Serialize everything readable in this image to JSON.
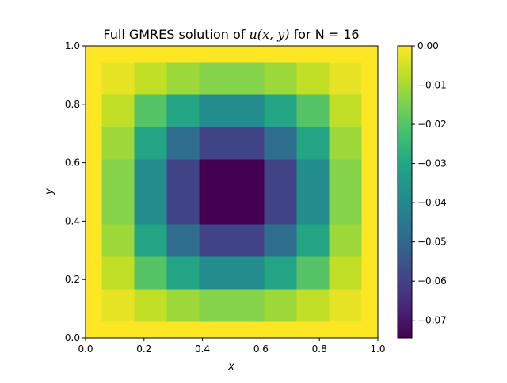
{
  "chart_data": {
    "type": "heatmap",
    "title_prefix": "Full GMRES solution of ",
    "title_math": "u(x, y)",
    "title_suffix": " for N = 16",
    "xlabel": "x",
    "ylabel": "y",
    "xlim": [
      0.0,
      1.0
    ],
    "ylim": [
      0.0,
      1.0
    ],
    "xticks": [
      "0.0",
      "0.2",
      "0.4",
      "0.6",
      "0.8",
      "1.0"
    ],
    "yticks": [
      "0.0",
      "0.2",
      "0.4",
      "0.6",
      "0.8",
      "1.0"
    ],
    "grid": false,
    "grid_size": 18,
    "interior_points": 16,
    "boundary_value": 0.0,
    "colorbar": {
      "colormap": "viridis",
      "vmin": -0.0745,
      "vmax": 0.0,
      "ticks": [
        0.0,
        -0.01,
        -0.02,
        -0.03,
        -0.04,
        -0.05,
        -0.06,
        -0.07
      ],
      "tick_labels": [
        "0.00",
        "−0.01",
        "−0.02",
        "−0.03",
        "−0.04",
        "−0.05",
        "−0.06",
        "−0.07"
      ]
    },
    "interior_profile": [
      0.1837,
      0.5195,
      0.8008,
      1.0
    ],
    "min_value": -0.0745
  }
}
